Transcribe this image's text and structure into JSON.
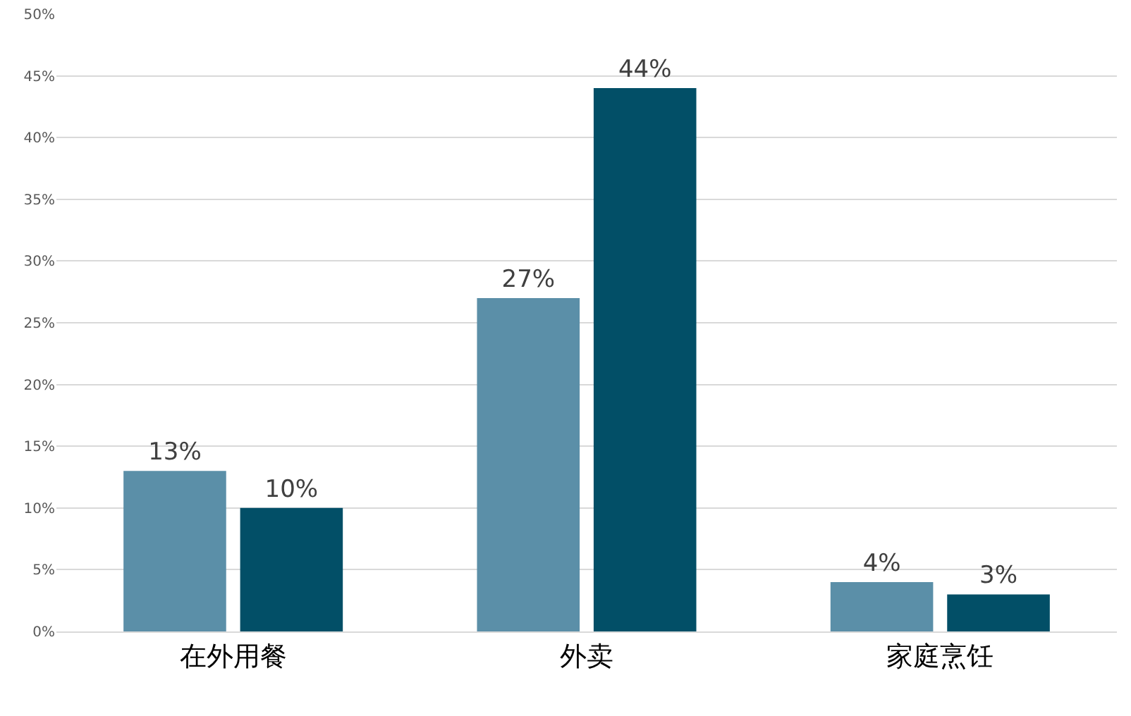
{
  "chart_data": {
    "type": "bar",
    "categories": [
      "在外用餐",
      "外卖",
      "家庭烹饪"
    ],
    "series": [
      {
        "color": "#5b8fa8",
        "values": [
          13,
          27,
          4
        ],
        "value_labels": [
          "13%",
          "27%",
          "4%"
        ]
      },
      {
        "color": "#024f67",
        "values": [
          10,
          44,
          3
        ],
        "value_labels": [
          "10%",
          "44%",
          "3%"
        ]
      }
    ],
    "ylim": [
      0,
      50
    ],
    "yticks": [
      {
        "value": 0,
        "label": "0%"
      },
      {
        "value": 5,
        "label": "5%"
      },
      {
        "value": 10,
        "label": "10%"
      },
      {
        "value": 15,
        "label": "15%"
      },
      {
        "value": 20,
        "label": "20%"
      },
      {
        "value": 25,
        "label": "25%"
      },
      {
        "value": 30,
        "label": "30%"
      },
      {
        "value": 35,
        "label": "35%"
      },
      {
        "value": 40,
        "label": "40%"
      },
      {
        "value": 45,
        "label": "45%"
      },
      {
        "value": 50,
        "label": "50%"
      }
    ],
    "grid": "y"
  }
}
